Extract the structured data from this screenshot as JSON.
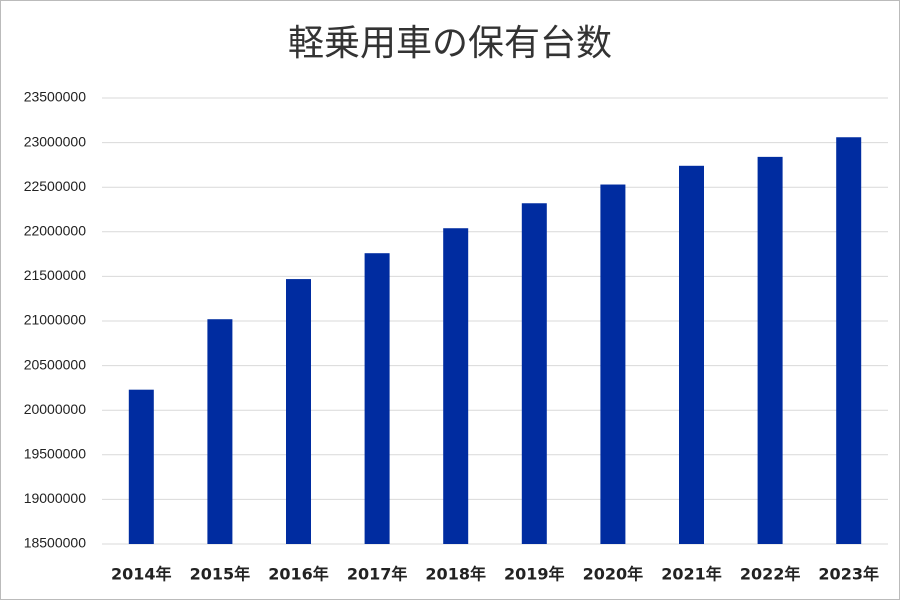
{
  "chart_data": {
    "type": "bar",
    "title": "軽乗用車の保有台数",
    "categories": [
      "2014年",
      "2015年",
      "2016年",
      "2017年",
      "2018年",
      "2019年",
      "2020年",
      "2021年",
      "2022年",
      "2023年"
    ],
    "values": [
      20230000,
      21020000,
      21470000,
      21760000,
      22040000,
      22320000,
      22530000,
      22740000,
      22840000,
      23060000
    ],
    "color": "#002ca0",
    "ylim": [
      18500000,
      23500000
    ],
    "yticks": [
      18500000,
      19000000,
      19500000,
      20000000,
      20500000,
      21000000,
      21500000,
      22000000,
      22500000,
      23000000,
      23500000
    ],
    "grid": true
  }
}
